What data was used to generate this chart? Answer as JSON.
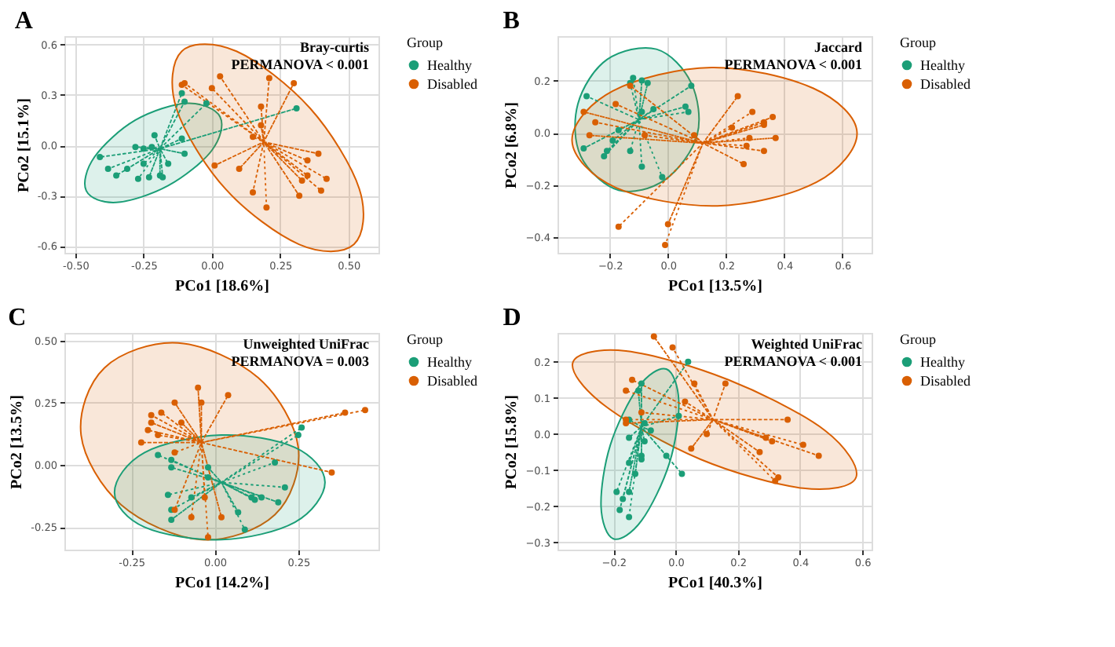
{
  "chart_data": [
    {
      "type": "scatter",
      "title": "A",
      "annotations": [
        "Bray-curtis",
        "PERMANOVA < 0.001"
      ],
      "xlabel": "PCo1 [18.6%]",
      "ylabel": "PCo2 [15.1%]",
      "legend_title": "Group",
      "legend": "right",
      "grid": true,
      "xlim": [
        -0.54,
        0.61
      ],
      "ylim": [
        -0.64,
        0.65
      ],
      "xticks": [
        {
          "value": -0.5,
          "label": "-0.50"
        },
        {
          "value": -0.25,
          "label": "-0.25"
        },
        {
          "value": 0,
          "label": "0.00"
        },
        {
          "value": 0.25,
          "label": "0.25"
        },
        {
          "value": 0.5,
          "label": "0.50"
        }
      ],
      "yticks": [
        {
          "value": -0.6,
          "label": "-0.6"
        },
        {
          "value": -0.3,
          "label": "-0.3"
        },
        {
          "value": 0,
          "label": "0.0"
        },
        {
          "value": 0.3,
          "label": "0.3"
        },
        {
          "value": 0.6,
          "label": "0.6"
        }
      ],
      "series": [
        {
          "type": "area",
          "color": "#1b9e77",
          "x": [
            0.03,
            0.0,
            -0.16,
            -0.35,
            -0.46,
            -0.43,
            -0.28,
            -0.09
          ],
          "values": [
            0.17,
            -0.03,
            -0.24,
            -0.34,
            -0.27,
            -0.07,
            0.15,
            0.25
          ]
        },
        {
          "type": "area",
          "color": "#d95f02",
          "x": [
            0.52,
            0.32,
            0.05,
            -0.13,
            -0.11,
            0.09,
            0.36,
            0.54
          ],
          "values": [
            -0.59,
            -0.59,
            -0.26,
            0.22,
            0.56,
            0.56,
            0.22,
            -0.26
          ]
        },
        {
          "type": "line",
          "line_style": "dotted",
          "color": "#1b9e77",
          "x": [
            -0.19,
            -0.11,
            -0.19,
            -0.1,
            -0.19,
            -0.02,
            -0.19,
            0.31,
            -0.19,
            -0.21,
            -0.19,
            -0.11,
            -0.19,
            -0.28,
            -0.19,
            -0.25,
            -0.19,
            -0.22,
            -0.19,
            -0.1,
            -0.19,
            -0.41,
            -0.19,
            -0.25,
            -0.19,
            -0.16,
            -0.19,
            -0.38,
            -0.19,
            -0.31,
            -0.19,
            -0.35,
            -0.19,
            -0.23,
            -0.19,
            -0.19,
            -0.19,
            -0.18,
            -0.19,
            -0.27
          ],
          "values": [
            -0.02,
            0.31,
            -0.02,
            0.26,
            -0.02,
            0.25,
            -0.02,
            0.22,
            -0.02,
            0.06,
            -0.02,
            0.04,
            -0.02,
            -0.01,
            -0.02,
            -0.02,
            -0.02,
            -0.01,
            -0.02,
            -0.05,
            -0.02,
            -0.07,
            -0.02,
            -0.11,
            -0.02,
            -0.11,
            -0.02,
            -0.14,
            -0.02,
            -0.14,
            -0.02,
            -0.18,
            -0.02,
            -0.19,
            -0.02,
            -0.18,
            -0.02,
            -0.19,
            -0.02,
            -0.2
          ]
        },
        {
          "type": "line",
          "line_style": "dotted",
          "color": "#d95f02",
          "x": [
            0.19,
            0.03,
            0.19,
            0.21,
            0.19,
            -0.11,
            0.19,
            -0.1,
            0.19,
            0.0,
            0.19,
            0.3,
            0.19,
            0.18,
            0.19,
            0.18,
            0.19,
            0.15,
            0.19,
            0.39,
            0.19,
            0.35,
            0.19,
            0.01,
            0.19,
            0.1,
            0.19,
            0.35,
            0.19,
            0.33,
            0.19,
            0.42,
            0.19,
            0.15,
            0.19,
            0.32,
            0.19,
            0.4,
            0.19,
            0.2
          ],
          "values": [
            0.02,
            0.41,
            0.02,
            0.4,
            0.02,
            0.36,
            0.02,
            0.37,
            0.02,
            0.34,
            0.02,
            0.37,
            0.02,
            0.23,
            0.02,
            0.12,
            0.02,
            0.05,
            0.02,
            -0.05,
            0.02,
            -0.09,
            0.02,
            -0.12,
            0.02,
            -0.14,
            0.02,
            -0.18,
            0.02,
            -0.21,
            0.02,
            -0.2,
            0.02,
            -0.28,
            0.02,
            -0.3,
            0.02,
            -0.27,
            0.02,
            -0.37
          ]
        },
        {
          "name": "Healthy",
          "marker": "circle",
          "color": "#1b9e77",
          "x": [
            -0.11,
            -0.1,
            -0.02,
            0.31,
            -0.21,
            -0.11,
            -0.28,
            -0.25,
            -0.22,
            -0.1,
            -0.41,
            -0.25,
            -0.16,
            -0.38,
            -0.31,
            -0.35,
            -0.23,
            -0.19,
            -0.18,
            -0.27
          ],
          "values": [
            0.31,
            0.26,
            0.25,
            0.22,
            0.06,
            0.04,
            -0.01,
            -0.02,
            -0.01,
            -0.05,
            -0.07,
            -0.11,
            -0.11,
            -0.14,
            -0.14,
            -0.18,
            -0.19,
            -0.18,
            -0.19,
            -0.2
          ]
        },
        {
          "name": "Disabled",
          "marker": "circle",
          "color": "#d95f02",
          "x": [
            0.03,
            0.21,
            -0.11,
            -0.1,
            0.0,
            0.3,
            0.18,
            0.18,
            0.15,
            0.39,
            0.35,
            0.01,
            0.1,
            0.35,
            0.33,
            0.42,
            0.15,
            0.32,
            0.4,
            0.2
          ],
          "values": [
            0.41,
            0.4,
            0.36,
            0.37,
            0.34,
            0.37,
            0.23,
            0.12,
            0.05,
            -0.05,
            -0.09,
            -0.12,
            -0.14,
            -0.18,
            -0.21,
            -0.2,
            -0.28,
            -0.3,
            -0.27,
            -0.37
          ]
        }
      ]
    },
    {
      "type": "scatter",
      "title": "B",
      "annotations": [
        "Jaccard",
        "PERMANOVA < 0.001"
      ],
      "xlabel": "PCo1 [13.5%]",
      "ylabel": "PCo2 [6.8%]",
      "legend_title": "Group",
      "legend": "right",
      "grid": true,
      "xlim": [
        -0.38,
        0.7
      ],
      "ylim": [
        -0.46,
        0.37
      ],
      "xticks": [
        -0.2,
        {
          "value": 0,
          "label": "0.0"
        },
        0.2,
        0.4,
        0.6
      ],
      "yticks": [
        -0.4,
        -0.2,
        {
          "value": 0,
          "label": "0.0"
        },
        0.2
      ],
      "series": [
        {
          "type": "area",
          "color": "#1b9e77",
          "x": [
            -0.04,
            0.08,
            0.1,
            -0.01,
            -0.17,
            -0.3,
            -0.31,
            -0.21
          ],
          "values": [
            0.32,
            0.19,
            -0.01,
            -0.18,
            -0.22,
            -0.09,
            0.11,
            0.28
          ]
        },
        {
          "type": "area",
          "color": "#d95f02",
          "x": [
            0.65,
            0.51,
            0.17,
            -0.18,
            -0.33,
            -0.19,
            0.15,
            0.5
          ],
          "values": [
            0.0,
            -0.19,
            -0.28,
            -0.21,
            -0.03,
            0.16,
            0.25,
            0.17
          ]
        },
        {
          "type": "line",
          "line_style": "dotted",
          "color": "#1b9e77",
          "x": [
            -0.1,
            -0.12,
            -0.1,
            -0.09,
            -0.1,
            -0.07,
            -0.1,
            -0.13,
            -0.1,
            0.08,
            -0.1,
            -0.28,
            -0.1,
            0.06,
            -0.1,
            0.07,
            -0.1,
            -0.05,
            -0.1,
            -0.09,
            -0.1,
            -0.17,
            -0.1,
            -0.19,
            -0.1,
            -0.21,
            -0.1,
            -0.29,
            -0.1,
            -0.22,
            -0.1,
            -0.13,
            -0.1,
            -0.09,
            -0.1,
            -0.02
          ],
          "values": [
            0.05,
            0.21,
            0.05,
            0.2,
            0.05,
            0.19,
            0.05,
            0.19,
            0.05,
            0.18,
            0.05,
            0.14,
            0.05,
            0.1,
            0.05,
            0.08,
            0.05,
            0.09,
            0.05,
            0.08,
            0.05,
            0.01,
            0.05,
            -0.03,
            0.05,
            -0.07,
            0.05,
            -0.06,
            0.05,
            -0.09,
            0.05,
            -0.07,
            0.05,
            -0.13,
            0.05,
            -0.17
          ]
        },
        {
          "type": "line",
          "line_style": "dotted",
          "color": "#d95f02",
          "x": [
            0.12,
            -0.13,
            0.12,
            -0.18,
            0.12,
            -0.29,
            0.12,
            -0.25,
            0.12,
            -0.27,
            0.12,
            -0.08,
            0.12,
            0.09,
            0.12,
            0.24,
            0.12,
            0.29,
            0.12,
            0.33,
            0.12,
            0.33,
            0.12,
            0.36,
            0.12,
            0.22,
            0.12,
            0.28,
            0.12,
            0.37,
            0.12,
            0.27,
            0.12,
            0.33,
            0.12,
            0.26,
            0.12,
            -0.17,
            0.12,
            0.0,
            0.12,
            -0.01
          ],
          "values": [
            -0.04,
            0.18,
            -0.04,
            0.11,
            -0.04,
            0.08,
            -0.04,
            0.04,
            -0.04,
            -0.01,
            -0.04,
            -0.01,
            -0.04,
            -0.01,
            -0.04,
            0.14,
            -0.04,
            0.08,
            -0.04,
            0.04,
            -0.04,
            0.03,
            -0.04,
            0.06,
            -0.04,
            0.02,
            -0.04,
            -0.02,
            -0.04,
            -0.02,
            -0.04,
            -0.05,
            -0.04,
            -0.07,
            -0.04,
            -0.12,
            -0.04,
            -0.36,
            -0.04,
            -0.35,
            -0.04,
            -0.43
          ]
        },
        {
          "name": "Healthy",
          "marker": "circle",
          "color": "#1b9e77",
          "x": [
            -0.12,
            -0.09,
            -0.07,
            -0.13,
            0.08,
            -0.28,
            0.06,
            0.07,
            -0.05,
            -0.09,
            -0.17,
            -0.19,
            -0.21,
            -0.29,
            -0.22,
            -0.13,
            -0.09,
            -0.02
          ],
          "values": [
            0.21,
            0.2,
            0.19,
            0.19,
            0.18,
            0.14,
            0.1,
            0.08,
            0.09,
            0.08,
            0.01,
            -0.03,
            -0.07,
            -0.06,
            -0.09,
            -0.07,
            -0.13,
            -0.17
          ]
        },
        {
          "name": "Disabled",
          "marker": "circle",
          "color": "#d95f02",
          "x": [
            -0.13,
            -0.18,
            -0.29,
            -0.25,
            -0.27,
            -0.08,
            0.09,
            0.24,
            0.29,
            0.33,
            0.33,
            0.36,
            0.22,
            0.28,
            0.37,
            0.27,
            0.33,
            0.26,
            -0.17,
            0.0,
            -0.01
          ],
          "values": [
            0.18,
            0.11,
            0.08,
            0.04,
            -0.01,
            -0.01,
            -0.01,
            0.14,
            0.08,
            0.04,
            0.03,
            0.06,
            0.02,
            -0.02,
            -0.02,
            -0.05,
            -0.07,
            -0.12,
            -0.36,
            -0.35,
            -0.43
          ]
        }
      ]
    },
    {
      "type": "scatter",
      "title": "C",
      "annotations": [
        "Unweighted UniFrac",
        "PERMANOVA = 0.003"
      ],
      "xlabel": "PCo1 [14.2%]",
      "ylabel": "PCo2 [13.5%]",
      "legend_title": "Group",
      "legend": "right",
      "grid": true,
      "xlim": [
        -0.45,
        0.49
      ],
      "ylim": [
        -0.34,
        0.53
      ],
      "xticks": [
        {
          "value": -0.25,
          "label": "-0.25"
        },
        {
          "value": 0,
          "label": "0.00"
        },
        {
          "value": 0.25,
          "label": "0.25"
        }
      ],
      "yticks": [
        {
          "value": -0.25,
          "label": "-0.25"
        },
        {
          "value": 0,
          "label": "0.00"
        },
        {
          "value": 0.25,
          "label": "0.25"
        },
        {
          "value": 0.5,
          "label": "0.50"
        }
      ],
      "series": [
        {
          "type": "area",
          "color": "#d95f02",
          "x": [
            0.25,
            0.18,
            -0.04,
            -0.28,
            -0.4,
            -0.33,
            -0.11,
            0.13
          ],
          "values": [
            0.07,
            -0.2,
            -0.3,
            -0.16,
            0.12,
            0.39,
            0.49,
            0.35
          ]
        },
        {
          "type": "area",
          "color": "#1b9e77",
          "x": [
            0.33,
            0.24,
            0.02,
            -0.21,
            -0.3,
            -0.21,
            0.02,
            0.24
          ],
          "values": [
            -0.07,
            -0.23,
            -0.3,
            -0.25,
            -0.11,
            0.05,
            0.12,
            0.07
          ]
        },
        {
          "type": "line",
          "line_style": "dotted",
          "color": "#1b9e77",
          "x": [
            0.02,
            0.26,
            0.02,
            0.25,
            0.02,
            -0.17,
            0.02,
            -0.13,
            0.02,
            -0.13,
            0.02,
            -0.02,
            0.02,
            -0.02,
            0.02,
            0.18,
            0.02,
            0.21,
            0.02,
            -0.14,
            0.02,
            -0.07,
            0.02,
            0.11,
            0.02,
            0.12,
            0.02,
            0.14,
            0.02,
            0.19,
            0.02,
            -0.13,
            0.02,
            0.07,
            0.02,
            -0.13,
            0.02,
            0.09
          ],
          "values": [
            -0.07,
            0.15,
            -0.07,
            0.12,
            -0.07,
            0.04,
            -0.07,
            0.02,
            -0.07,
            -0.01,
            -0.07,
            -0.01,
            -0.07,
            -0.05,
            -0.07,
            0.01,
            -0.07,
            -0.09,
            -0.07,
            -0.12,
            -0.07,
            -0.13,
            -0.07,
            -0.13,
            -0.07,
            -0.14,
            -0.07,
            -0.13,
            -0.07,
            -0.15,
            -0.07,
            -0.18,
            -0.07,
            -0.19,
            -0.07,
            -0.22,
            -0.07,
            -0.26
          ]
        },
        {
          "type": "line",
          "line_style": "dotted",
          "color": "#d95f02",
          "x": [
            -0.04,
            -0.05,
            -0.04,
            0.04,
            -0.04,
            -0.04,
            -0.04,
            -0.12,
            -0.04,
            -0.16,
            -0.04,
            -0.19,
            -0.04,
            -0.19,
            -0.04,
            -0.1,
            -0.04,
            -0.2,
            -0.04,
            -0.17,
            -0.04,
            -0.22,
            -0.04,
            -0.12,
            -0.04,
            0.39,
            -0.04,
            0.45,
            -0.04,
            0.35,
            -0.04,
            -0.03,
            -0.04,
            -0.12,
            -0.04,
            -0.07,
            -0.04,
            0.02,
            -0.04,
            -0.02
          ],
          "values": [
            0.09,
            0.31,
            0.09,
            0.28,
            0.09,
            0.25,
            0.09,
            0.25,
            0.09,
            0.21,
            0.09,
            0.2,
            0.09,
            0.17,
            0.09,
            0.17,
            0.09,
            0.14,
            0.09,
            0.12,
            0.09,
            0.09,
            0.09,
            0.05,
            0.09,
            0.21,
            0.09,
            0.22,
            0.09,
            -0.03,
            0.09,
            -0.13,
            0.09,
            -0.18,
            0.09,
            -0.21,
            0.09,
            -0.21,
            0.09,
            -0.29
          ]
        },
        {
          "name": "Healthy",
          "marker": "circle",
          "color": "#1b9e77",
          "x": [
            0.26,
            0.25,
            -0.17,
            -0.13,
            -0.13,
            -0.02,
            -0.02,
            0.18,
            0.21,
            -0.14,
            -0.07,
            0.11,
            0.12,
            0.14,
            0.19,
            -0.13,
            0.07,
            -0.13,
            0.09
          ],
          "values": [
            0.15,
            0.12,
            0.04,
            0.02,
            -0.01,
            -0.01,
            -0.05,
            0.01,
            -0.09,
            -0.12,
            -0.13,
            -0.13,
            -0.14,
            -0.13,
            -0.15,
            -0.18,
            -0.19,
            -0.22,
            -0.26
          ]
        },
        {
          "name": "Disabled",
          "marker": "circle",
          "color": "#d95f02",
          "x": [
            -0.05,
            0.04,
            -0.04,
            -0.12,
            -0.16,
            -0.19,
            -0.19,
            -0.1,
            -0.2,
            -0.17,
            -0.22,
            -0.12,
            0.39,
            0.45,
            0.35,
            -0.03,
            -0.12,
            -0.07,
            0.02,
            -0.02
          ],
          "values": [
            0.31,
            0.28,
            0.25,
            0.25,
            0.21,
            0.2,
            0.17,
            0.17,
            0.14,
            0.12,
            0.09,
            0.05,
            0.21,
            0.22,
            -0.03,
            -0.13,
            -0.18,
            -0.21,
            -0.21,
            -0.29
          ]
        }
      ]
    },
    {
      "type": "scatter",
      "title": "D",
      "annotations": [
        "Weighted UniFrac",
        "PERMANOVA < 0.001"
      ],
      "xlabel": "PCo1 [40.3%]",
      "ylabel": "PCo2 [15.8%]",
      "legend_title": "Group",
      "legend": "right",
      "grid": true,
      "xlim": [
        -0.38,
        0.63
      ],
      "ylim": [
        -0.32,
        0.28
      ],
      "xticks": [
        -0.2,
        {
          "value": 0,
          "label": "0.0"
        },
        0.2,
        0.4,
        0.6
      ],
      "yticks": [
        -0.3,
        -0.2,
        -0.1,
        {
          "value": 0,
          "label": "0.0"
        },
        0.1,
        0.2
      ],
      "series": [
        {
          "type": "area",
          "color": "#d95f02",
          "x": [
            0.58,
            0.41,
            0.08,
            -0.23,
            -0.33,
            -0.16,
            0.17,
            0.48
          ],
          "values": [
            -0.12,
            -0.15,
            -0.07,
            0.08,
            0.2,
            0.23,
            0.15,
            0.01
          ]
        },
        {
          "type": "area",
          "color": "#1b9e77",
          "x": [
            -0.03,
            0.01,
            -0.02,
            -0.11,
            -0.2,
            -0.24,
            -0.21,
            -0.12
          ],
          "values": [
            0.18,
            0.09,
            -0.08,
            -0.24,
            -0.29,
            -0.2,
            -0.03,
            0.13
          ]
        },
        {
          "type": "line",
          "line_style": "dotted",
          "color": "#1b9e77",
          "x": [
            -0.11,
            0.04,
            -0.11,
            -0.11,
            -0.11,
            -0.12,
            -0.11,
            0.01,
            -0.11,
            -0.15,
            -0.11,
            -0.1,
            -0.11,
            -0.08,
            -0.11,
            -0.15,
            -0.11,
            -0.1,
            -0.11,
            -0.03,
            -0.11,
            -0.11,
            -0.11,
            -0.11,
            -0.11,
            -0.15,
            -0.11,
            0.02,
            -0.11,
            -0.13,
            -0.11,
            -0.19,
            -0.11,
            -0.15,
            -0.11,
            -0.17,
            -0.11,
            -0.18,
            -0.11,
            -0.15
          ],
          "values": [
            0.02,
            0.2,
            0.02,
            0.14,
            0.02,
            0.12,
            0.02,
            0.05,
            0.02,
            0.04,
            0.02,
            0.03,
            0.02,
            0.01,
            0.02,
            -0.01,
            0.02,
            -0.02,
            0.02,
            -0.06,
            0.02,
            -0.06,
            0.02,
            -0.07,
            0.02,
            -0.08,
            0.02,
            -0.11,
            0.02,
            -0.11,
            0.02,
            -0.16,
            0.02,
            -0.16,
            0.02,
            -0.18,
            0.02,
            -0.21,
            0.02,
            -0.23
          ]
        },
        {
          "type": "line",
          "line_style": "dotted",
          "color": "#d95f02",
          "x": [
            0.12,
            -0.07,
            0.12,
            -0.01,
            0.12,
            -0.14,
            0.12,
            -0.16,
            0.12,
            0.06,
            0.12,
            0.16,
            0.12,
            0.03,
            0.12,
            -0.11,
            0.12,
            -0.16,
            0.12,
            -0.16,
            0.12,
            0.36,
            0.12,
            0.1,
            0.12,
            0.29,
            0.12,
            0.31,
            0.12,
            0.05,
            0.12,
            0.27,
            0.12,
            0.41,
            0.12,
            0.46,
            0.12,
            0.33,
            0.12,
            0.32
          ],
          "values": [
            0.04,
            0.27,
            0.04,
            0.24,
            0.04,
            0.15,
            0.04,
            0.12,
            0.04,
            0.14,
            0.04,
            0.14,
            0.04,
            0.09,
            0.04,
            0.06,
            0.04,
            0.04,
            0.04,
            0.03,
            0.04,
            0.04,
            0.04,
            0.0,
            0.04,
            -0.01,
            0.04,
            -0.02,
            0.04,
            -0.04,
            0.04,
            -0.05,
            0.04,
            -0.03,
            0.04,
            -0.06,
            0.04,
            -0.12,
            0.04,
            -0.13
          ]
        },
        {
          "name": "Healthy",
          "marker": "circle",
          "color": "#1b9e77",
          "x": [
            0.04,
            -0.11,
            -0.12,
            0.01,
            -0.15,
            -0.1,
            -0.08,
            -0.15,
            -0.1,
            -0.03,
            -0.11,
            -0.11,
            -0.15,
            0.02,
            -0.13,
            -0.19,
            -0.15,
            -0.17,
            -0.18,
            -0.15
          ],
          "values": [
            0.2,
            0.14,
            0.12,
            0.05,
            0.04,
            0.03,
            0.01,
            -0.01,
            -0.02,
            -0.06,
            -0.06,
            -0.07,
            -0.08,
            -0.11,
            -0.11,
            -0.16,
            -0.16,
            -0.18,
            -0.21,
            -0.23
          ]
        },
        {
          "name": "Disabled",
          "marker": "circle",
          "color": "#d95f02",
          "x": [
            -0.07,
            -0.01,
            -0.14,
            -0.16,
            0.06,
            0.16,
            0.03,
            -0.11,
            -0.16,
            -0.16,
            0.36,
            0.1,
            0.29,
            0.31,
            0.05,
            0.27,
            0.41,
            0.46,
            0.33,
            0.32
          ],
          "values": [
            0.27,
            0.24,
            0.15,
            0.12,
            0.14,
            0.14,
            0.09,
            0.06,
            0.04,
            0.03,
            0.04,
            0.0,
            -0.01,
            -0.02,
            -0.04,
            -0.05,
            -0.03,
            -0.06,
            -0.12,
            -0.13
          ]
        }
      ]
    }
  ]
}
